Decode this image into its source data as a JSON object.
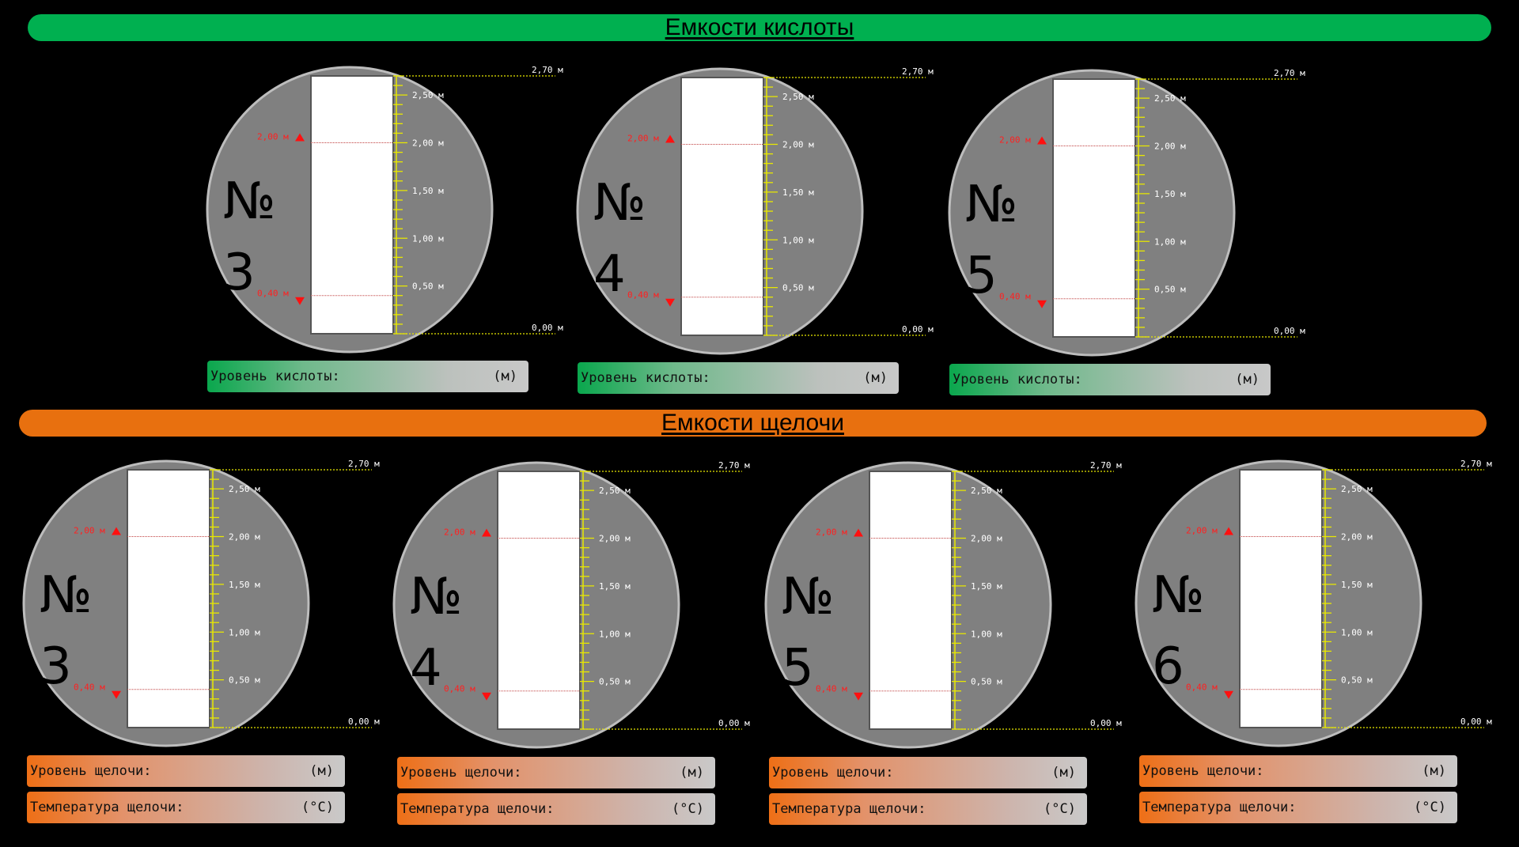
{
  "acid_section": {
    "title": "Емкости кислоты",
    "color": "#00b050",
    "tanks": [
      {
        "number": "№ 3",
        "level_label": "Уровень кислоты:",
        "level_unit": "(м)"
      },
      {
        "number": "№ 4",
        "level_label": "Уровень кислоты:",
        "level_unit": "(м)"
      },
      {
        "number": "№ 5",
        "level_label": "Уровень кислоты:",
        "level_unit": "(м)"
      }
    ]
  },
  "alkali_section": {
    "title": "Емкости щелочи",
    "color": "#e8700f",
    "tanks": [
      {
        "number": "№ 3",
        "level_label": "Уровень щелочи:",
        "level_unit": "(м)",
        "temp_label": "Температура щелочи:",
        "temp_unit": "(°C)"
      },
      {
        "number": "№ 4",
        "level_label": "Уровень щелочи:",
        "level_unit": "(м)",
        "temp_label": "Температура щелочи:",
        "temp_unit": "(°C)"
      },
      {
        "number": "№ 5",
        "level_label": "Уровень щелочи:",
        "level_unit": "(м)",
        "temp_label": "Температура щелочи:",
        "temp_unit": "(°C)"
      },
      {
        "number": "№ 6",
        "level_label": "Уровень щелочи:",
        "level_unit": "(м)",
        "temp_label": "Температура щелочи:",
        "temp_unit": "(°C)"
      }
    ]
  },
  "gauge": {
    "max_label": "2,70 м",
    "min_label": "0,00 м",
    "scale_labels": [
      "2,50 м",
      "2,00 м",
      "1,50 м",
      "1,00 м",
      "0,50 м"
    ],
    "scale_values": [
      2.5,
      2.0,
      1.5,
      1.0,
      0.5
    ],
    "high_alarm": {
      "label": "2,00 м",
      "value": 2.0
    },
    "low_alarm": {
      "label": "0,40 м",
      "value": 0.4
    },
    "range": [
      0,
      2.7
    ]
  }
}
